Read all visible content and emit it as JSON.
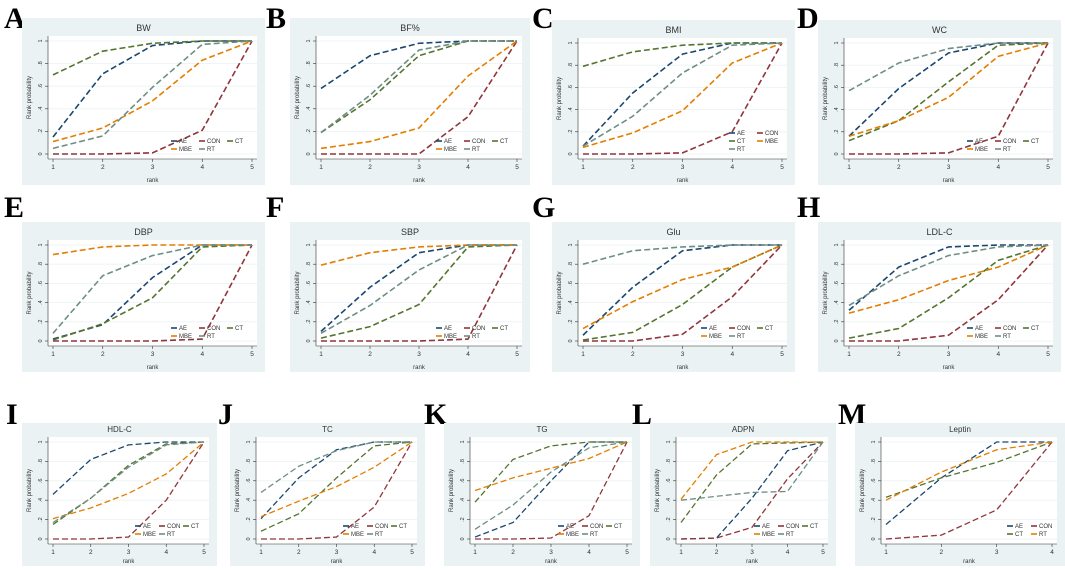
{
  "colors": {
    "AE": "#1a476f",
    "CON": "#90353b",
    "CT": "#55752f",
    "MBE": "#e37e00",
    "RT": "#6e8e84"
  },
  "axis": {
    "ylabel": "Rank probability",
    "xlabel": "rank",
    "yticks": [
      "0",
      ".2",
      ".4",
      ".6",
      ".8",
      "1"
    ]
  },
  "chart_data": [
    {
      "type": "line",
      "letter": "A",
      "title": "BW",
      "x": [
        1,
        2,
        3,
        4,
        5
      ],
      "ylim": [
        0,
        1
      ],
      "legend": [
        "AE",
        "CON",
        "CT",
        "MBE",
        "RT"
      ],
      "series": [
        {
          "name": "AE",
          "values": [
            0.15,
            0.71,
            0.96,
            1,
            1
          ]
        },
        {
          "name": "CON",
          "values": [
            0,
            0,
            0.01,
            0.21,
            1
          ]
        },
        {
          "name": "CT",
          "values": [
            0.7,
            0.91,
            0.98,
            1,
            1
          ]
        },
        {
          "name": "MBE",
          "values": [
            0.11,
            0.23,
            0.47,
            0.83,
            1
          ]
        },
        {
          "name": "RT",
          "values": [
            0.05,
            0.16,
            0.59,
            0.97,
            1
          ]
        }
      ]
    },
    {
      "type": "line",
      "letter": "B",
      "title": "BF%",
      "x": [
        1,
        2,
        3,
        4,
        5
      ],
      "ylim": [
        0,
        1
      ],
      "legend": [
        "AE",
        "CON",
        "CT",
        "MBE",
        "RT"
      ],
      "series": [
        {
          "name": "AE",
          "values": [
            0.58,
            0.87,
            0.98,
            1,
            1
          ]
        },
        {
          "name": "CON",
          "values": [
            0,
            0,
            0,
            0.33,
            1
          ]
        },
        {
          "name": "CT",
          "values": [
            0.19,
            0.48,
            0.87,
            1,
            1
          ]
        },
        {
          "name": "MBE",
          "values": [
            0.05,
            0.11,
            0.23,
            0.69,
            1
          ]
        },
        {
          "name": "RT",
          "values": [
            0.19,
            0.52,
            0.92,
            1,
            1
          ]
        }
      ]
    },
    {
      "type": "line",
      "letter": "C",
      "title": "BMI",
      "x": [
        1,
        2,
        3,
        4,
        5
      ],
      "ylim": [
        0,
        1
      ],
      "legend": [
        "AE",
        "CON",
        "CT",
        "MBE",
        "RT"
      ],
      "legend_cols": 2,
      "series": [
        {
          "name": "AE",
          "values": [
            0.07,
            0.55,
            0.9,
            1,
            1
          ]
        },
        {
          "name": "CON",
          "values": [
            0,
            0,
            0.01,
            0.2,
            1
          ]
        },
        {
          "name": "CT",
          "values": [
            0.79,
            0.92,
            0.98,
            1,
            1
          ]
        },
        {
          "name": "MBE",
          "values": [
            0.06,
            0.19,
            0.39,
            0.82,
            1
          ]
        },
        {
          "name": "RT",
          "values": [
            0.07,
            0.34,
            0.73,
            0.98,
            1
          ]
        }
      ]
    },
    {
      "type": "line",
      "letter": "D",
      "title": "WC",
      "x": [
        1,
        2,
        3,
        4,
        5
      ],
      "ylim": [
        0,
        1
      ],
      "legend": [
        "AE",
        "CON",
        "CT",
        "MBE",
        "RT"
      ],
      "series": [
        {
          "name": "AE",
          "values": [
            0.16,
            0.59,
            0.91,
            1,
            1
          ]
        },
        {
          "name": "CON",
          "values": [
            0,
            0,
            0.01,
            0.16,
            1
          ]
        },
        {
          "name": "CT",
          "values": [
            0.12,
            0.3,
            0.65,
            0.98,
            1
          ]
        },
        {
          "name": "MBE",
          "values": [
            0.16,
            0.3,
            0.51,
            0.88,
            1
          ]
        },
        {
          "name": "RT",
          "values": [
            0.57,
            0.82,
            0.95,
            1,
            1
          ]
        }
      ]
    },
    {
      "type": "line",
      "letter": "E",
      "title": "DBP",
      "x": [
        1,
        2,
        3,
        4,
        5
      ],
      "ylim": [
        0,
        1
      ],
      "legend": [
        "AE",
        "CON",
        "CT",
        "MBE",
        "RT"
      ],
      "series": [
        {
          "name": "AE",
          "values": [
            0.02,
            0.17,
            0.66,
            1,
            1
          ]
        },
        {
          "name": "CON",
          "values": [
            0,
            0,
            0,
            0.02,
            1
          ]
        },
        {
          "name": "CT",
          "values": [
            0.01,
            0.18,
            0.45,
            0.98,
            1
          ]
        },
        {
          "name": "MBE",
          "values": [
            0.9,
            0.98,
            1,
            1,
            1
          ]
        },
        {
          "name": "RT",
          "values": [
            0.08,
            0.68,
            0.89,
            1,
            1
          ]
        }
      ]
    },
    {
      "type": "line",
      "letter": "F",
      "title": "SBP",
      "x": [
        1,
        2,
        3,
        4,
        5
      ],
      "ylim": [
        0,
        1
      ],
      "legend": [
        "AE",
        "CON",
        "CT",
        "MBE",
        "RT"
      ],
      "series": [
        {
          "name": "AE",
          "values": [
            0.1,
            0.56,
            0.92,
            1,
            1
          ]
        },
        {
          "name": "CON",
          "values": [
            0,
            0,
            0,
            0.02,
            1
          ]
        },
        {
          "name": "CT",
          "values": [
            0.03,
            0.15,
            0.38,
            0.98,
            1
          ]
        },
        {
          "name": "MBE",
          "values": [
            0.79,
            0.92,
            0.98,
            1,
            1
          ]
        },
        {
          "name": "RT",
          "values": [
            0.08,
            0.37,
            0.74,
            1,
            1
          ]
        }
      ]
    },
    {
      "type": "line",
      "letter": "G",
      "title": "Glu",
      "x": [
        1,
        2,
        3,
        4,
        5
      ],
      "ylim": [
        0,
        1
      ],
      "legend": [
        "AE",
        "CON",
        "CT",
        "MBE",
        "RT"
      ],
      "series": [
        {
          "name": "AE",
          "values": [
            0.06,
            0.56,
            0.94,
            1,
            1
          ]
        },
        {
          "name": "CON",
          "values": [
            0,
            0,
            0.07,
            0.46,
            1
          ]
        },
        {
          "name": "CT",
          "values": [
            0.01,
            0.09,
            0.38,
            0.77,
            1
          ]
        },
        {
          "name": "MBE",
          "values": [
            0.13,
            0.41,
            0.64,
            0.77,
            1
          ]
        },
        {
          "name": "RT",
          "values": [
            0.8,
            0.94,
            0.98,
            1,
            1
          ]
        }
      ]
    },
    {
      "type": "line",
      "letter": "H",
      "title": "LDL-C",
      "x": [
        1,
        2,
        3,
        4,
        5
      ],
      "ylim": [
        0,
        1
      ],
      "legend": [
        "AE",
        "CON",
        "CT",
        "MBE",
        "RT"
      ],
      "series": [
        {
          "name": "AE",
          "values": [
            0.32,
            0.77,
            0.98,
            1,
            1
          ]
        },
        {
          "name": "CON",
          "values": [
            0,
            0,
            0.06,
            0.43,
            1
          ]
        },
        {
          "name": "CT",
          "values": [
            0.03,
            0.13,
            0.45,
            0.84,
            1
          ]
        },
        {
          "name": "MBE",
          "values": [
            0.29,
            0.43,
            0.63,
            0.77,
            1
          ]
        },
        {
          "name": "RT",
          "values": [
            0.37,
            0.68,
            0.89,
            0.98,
            1
          ]
        }
      ]
    },
    {
      "type": "line",
      "letter": "I",
      "title": "HDL-C",
      "x": [
        1,
        2,
        3,
        4,
        5
      ],
      "ylim": [
        0,
        1
      ],
      "legend": [
        "AE",
        "CON",
        "CT",
        "MBE",
        "RT"
      ],
      "series": [
        {
          "name": "AE",
          "values": [
            0.46,
            0.82,
            0.97,
            1,
            1
          ]
        },
        {
          "name": "CON",
          "values": [
            0,
            0,
            0.02,
            0.4,
            1
          ]
        },
        {
          "name": "CT",
          "values": [
            0.15,
            0.42,
            0.76,
            0.98,
            1
          ]
        },
        {
          "name": "MBE",
          "values": [
            0.21,
            0.32,
            0.47,
            0.67,
            1
          ]
        },
        {
          "name": "RT",
          "values": [
            0.17,
            0.42,
            0.74,
            0.97,
            1
          ]
        }
      ]
    },
    {
      "type": "line",
      "letter": "J",
      "title": "TC",
      "x": [
        1,
        2,
        3,
        4,
        5
      ],
      "ylim": [
        0,
        1
      ],
      "legend": [
        "AE",
        "CON",
        "CT",
        "MBE",
        "RT"
      ],
      "series": [
        {
          "name": "AE",
          "values": [
            0.21,
            0.63,
            0.92,
            1,
            1
          ]
        },
        {
          "name": "CON",
          "values": [
            0,
            0,
            0.02,
            0.33,
            1
          ]
        },
        {
          "name": "CT",
          "values": [
            0.08,
            0.26,
            0.63,
            0.96,
            1
          ]
        },
        {
          "name": "MBE",
          "values": [
            0.23,
            0.39,
            0.54,
            0.74,
            1
          ]
        },
        {
          "name": "RT",
          "values": [
            0.48,
            0.75,
            0.91,
            1,
            1
          ]
        }
      ]
    },
    {
      "type": "line",
      "letter": "K",
      "title": "TG",
      "x": [
        1,
        2,
        3,
        4,
        5
      ],
      "ylim": [
        0,
        1
      ],
      "legend": [
        "AE",
        "CON",
        "CT",
        "MBE",
        "RT"
      ],
      "series": [
        {
          "name": "AE",
          "values": [
            0.02,
            0.17,
            0.6,
            1,
            1
          ]
        },
        {
          "name": "CON",
          "values": [
            0,
            0,
            0.01,
            0.24,
            1
          ]
        },
        {
          "name": "CT",
          "values": [
            0.38,
            0.82,
            0.96,
            1,
            1
          ]
        },
        {
          "name": "MBE",
          "values": [
            0.5,
            0.63,
            0.73,
            0.83,
            1
          ]
        },
        {
          "name": "RT",
          "values": [
            0.1,
            0.35,
            0.69,
            0.94,
            1
          ]
        }
      ]
    },
    {
      "type": "line",
      "letter": "L",
      "title": "ADPN",
      "x": [
        1,
        2,
        3,
        4,
        5
      ],
      "ylim": [
        0,
        1
      ],
      "legend": [
        "AE",
        "CON",
        "CT",
        "MBE",
        "RT"
      ],
      "series": [
        {
          "name": "AE",
          "values": [
            0,
            0.01,
            0.42,
            0.91,
            1
          ]
        },
        {
          "name": "CON",
          "values": [
            0,
            0.01,
            0.12,
            0.62,
            1
          ]
        },
        {
          "name": "CT",
          "values": [
            0.17,
            0.66,
            0.98,
            0.99,
            1
          ]
        },
        {
          "name": "MBE",
          "values": [
            0.41,
            0.87,
            1,
            1,
            1
          ]
        },
        {
          "name": "RT",
          "values": [
            0.4,
            0.44,
            0.48,
            0.49,
            1
          ]
        }
      ]
    },
    {
      "type": "line",
      "letter": "M",
      "title": "Leptin",
      "x": [
        1,
        2,
        3,
        4
      ],
      "ylim": [
        0,
        1
      ],
      "legend": [
        "AE",
        "CON",
        "CT",
        "RT"
      ],
      "legend_cols": 2,
      "series": [
        {
          "name": "AE",
          "values": [
            0.15,
            0.63,
            1,
            1
          ],
          "color": "#1a476f"
        },
        {
          "name": "CON",
          "values": [
            0,
            0.04,
            0.3,
            1
          ],
          "color": "#90353b"
        },
        {
          "name": "CT",
          "values": [
            0.43,
            0.63,
            0.79,
            1
          ],
          "color": "#55752f"
        },
        {
          "name": "RT",
          "values": [
            0.4,
            0.69,
            0.92,
            1
          ],
          "color": "#e37e00"
        }
      ]
    }
  ]
}
